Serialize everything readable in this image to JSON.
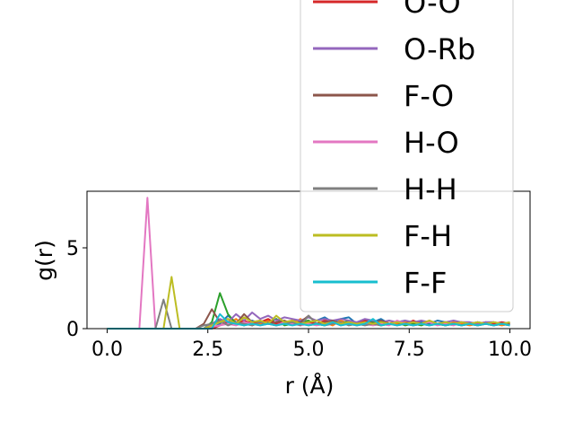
{
  "chart_data": {
    "type": "line",
    "xlabel": "r (Å)",
    "ylabel": "g(r)",
    "x": [
      0,
      0.2,
      0.4,
      0.6,
      0.8,
      1.0,
      1.2,
      1.4,
      1.6,
      1.8,
      2.0,
      2.2,
      2.4,
      2.6,
      2.8,
      3.0,
      3.2,
      3.4,
      3.6,
      3.8,
      4.0,
      4.2,
      4.4,
      4.6,
      4.8,
      5.0,
      5.2,
      5.4,
      5.6,
      5.8,
      6.0,
      6.2,
      6.4,
      6.6,
      6.8,
      7.0,
      7.2,
      7.4,
      7.6,
      7.8,
      8.0,
      8.2,
      8.4,
      8.6,
      8.8,
      9.0,
      9.2,
      9.4,
      9.6,
      9.8,
      10.0
    ],
    "xlim": [
      -0.5,
      10.5
    ],
    "xticks": [
      {
        "value": 0,
        "label": "0.0"
      },
      2.5,
      {
        "value": 5,
        "label": "5.0"
      },
      7.5,
      {
        "value": 10,
        "label": "10.0"
      }
    ],
    "ylim": [
      0,
      8.5
    ],
    "yticks": [
      0,
      5
    ],
    "legend": "upper-right",
    "series": [
      {
        "color": "#1f77b4",
        "values": [
          0,
          0,
          0,
          0,
          0,
          0,
          0,
          0,
          0,
          0,
          0,
          0,
          0,
          0,
          0.3,
          0.8,
          0.4,
          0.2,
          0.5,
          0.3,
          0.4,
          0.6,
          0.3,
          0.5,
          0.4,
          0.3,
          0.5,
          0.7,
          0.4,
          0.6,
          0.7,
          0.3,
          0.5,
          0.4,
          0.6,
          0.3,
          0.4,
          0.5,
          0.3,
          0.4,
          0.3,
          0.5,
          0.4,
          0.3,
          0.4,
          0.3,
          0.4,
          0.3,
          0.3,
          0.4,
          0.3
        ]
      },
      {
        "color": "#ff7f0e",
        "values": [
          0,
          0,
          0,
          0,
          0,
          0,
          0,
          0,
          0,
          0,
          0,
          0,
          0,
          0.2,
          0.5,
          0.3,
          0.6,
          0.2,
          0.4,
          0.3,
          0.5,
          0.2,
          0.4,
          0.3,
          0.6,
          0.2,
          0.3,
          0.4,
          0.2,
          0.5,
          0.3,
          0.2,
          0.4,
          0.3,
          0.2,
          0.5,
          0.3,
          0.4,
          0.2,
          0.3,
          0.4,
          0.3,
          0.2,
          0.4,
          0.3,
          0.2,
          0.3,
          0.4,
          0.3,
          0.2,
          0.3
        ]
      },
      {
        "color": "#2ca02c",
        "values": [
          0,
          0,
          0,
          0,
          0,
          0,
          0,
          0,
          0,
          0,
          0,
          0,
          0,
          0.4,
          2.2,
          0.9,
          0.3,
          0.5,
          0.2,
          0.4,
          0.3,
          0.6,
          0.2,
          0.3,
          0.4,
          0.5,
          0.3,
          0.2,
          0.4,
          0.3,
          0.5,
          0.2,
          0.3,
          0.4,
          0.2,
          0.3,
          0.4,
          0.2,
          0.3,
          0.2,
          0.4,
          0.3,
          0.2,
          0.3,
          0.2,
          0.3,
          0.2,
          0.3,
          0.2,
          0.3,
          0.2
        ]
      },
      {
        "name": "O-O",
        "color": "#d62728",
        "values": [
          0,
          0,
          0,
          0,
          0,
          0,
          0,
          0,
          0,
          0,
          0,
          0,
          0,
          0,
          0.2,
          0.4,
          0.3,
          0.5,
          0.3,
          0.4,
          0.6,
          0.3,
          0.4,
          0.5,
          0.3,
          0.4,
          0.3,
          0.5,
          0.4,
          0.3,
          0.4,
          0.3,
          0.5,
          0.3,
          0.4,
          0.3,
          0.4,
          0.3,
          0.5,
          0.3,
          0.4,
          0.3,
          0.4,
          0.3,
          0.4,
          0.3,
          0.3,
          0.4,
          0.3,
          0.4,
          0.3
        ]
      },
      {
        "name": "O-Rb",
        "color": "#9467bd",
        "values": [
          0,
          0,
          0,
          0,
          0,
          0,
          0,
          0,
          0,
          0,
          0,
          0,
          0,
          0.3,
          0.6,
          0.4,
          0.9,
          0.5,
          1.0,
          0.6,
          0.8,
          0.5,
          0.7,
          0.6,
          0.5,
          0.7,
          0.5,
          0.6,
          0.5,
          0.6,
          0.5,
          0.4,
          0.6,
          0.5,
          0.4,
          0.5,
          0.4,
          0.5,
          0.4,
          0.5,
          0.4,
          0.3,
          0.4,
          0.5,
          0.4,
          0.4,
          0.3,
          0.4,
          0.4,
          0.3,
          0.4
        ]
      },
      {
        "name": "F-O",
        "color": "#8c564b",
        "values": [
          0,
          0,
          0,
          0,
          0,
          0,
          0,
          0,
          0,
          0,
          0,
          0,
          0.3,
          1.2,
          0.4,
          0.6,
          0.3,
          0.9,
          0.4,
          0.5,
          0.3,
          0.4,
          0.5,
          0.3,
          0.4,
          0.8,
          0.3,
          0.4,
          0.5,
          0.3,
          0.4,
          0.3,
          0.4,
          0.3,
          0.5,
          0.3,
          0.4,
          0.3,
          0.4,
          0.3,
          0.5,
          0.3,
          0.4,
          0.3,
          0.4,
          0.3,
          0.4,
          0.3,
          0.4,
          0.3,
          0.3
        ]
      },
      {
        "name": "H-O",
        "color": "#e377c2",
        "values": [
          0,
          0,
          0,
          0,
          0,
          8.1,
          0,
          0,
          0,
          0,
          0,
          0,
          0,
          0.1,
          0.2,
          0.3,
          0.2,
          0.4,
          0.3,
          0.2,
          0.3,
          0.2,
          0.4,
          0.3,
          0.2,
          0.3,
          0.2,
          0.3,
          0.4,
          0.2,
          0.3,
          0.2,
          0.3,
          0.2,
          0.3,
          0.2,
          0.5,
          0.3,
          0.2,
          0.3,
          0.4,
          0.2,
          0.3,
          0.2,
          0.4,
          0.3,
          0.2,
          0.3,
          0.2,
          0.3,
          0.2
        ]
      },
      {
        "name": "H-H",
        "color": "#7f7f7f",
        "values": [
          0,
          0,
          0,
          0,
          0,
          0,
          0,
          1.8,
          0,
          0,
          0,
          0,
          0.2,
          0.3,
          0.5,
          0.2,
          0.4,
          0.3,
          0.2,
          0.4,
          0.3,
          0.2,
          0.3,
          0.4,
          0.2,
          0.8,
          0.3,
          0.2,
          0.3,
          0.4,
          0.2,
          0.3,
          0.2,
          0.3,
          0.2,
          0.3,
          0.2,
          0.3,
          0.2,
          0.3,
          0.2,
          0.3,
          0.2,
          0.3,
          0.2,
          0.3,
          0.2,
          0.3,
          0.2,
          0.3,
          0.2
        ]
      },
      {
        "name": "F-H",
        "color": "#bcbd22",
        "values": [
          0,
          0,
          0,
          0,
          0,
          0,
          0,
          0,
          3.2,
          0,
          0,
          0,
          0,
          0.2,
          0.4,
          0.6,
          0.3,
          0.7,
          0.4,
          0.5,
          0.3,
          0.8,
          0.4,
          0.5,
          0.3,
          0.4,
          0.5,
          0.3,
          0.4,
          0.3,
          0.4,
          0.3,
          0.4,
          0.3,
          0.4,
          0.3,
          0.4,
          0.3,
          0.4,
          0.3,
          0.5,
          0.3,
          0.4,
          0.3,
          0.4,
          0.3,
          0.4,
          0.3,
          0.4,
          0.3,
          0.4
        ]
      },
      {
        "name": "F-F",
        "color": "#17becf",
        "values": [
          0,
          0,
          0,
          0,
          0,
          0,
          0,
          0,
          0,
          0,
          0,
          0,
          0,
          0,
          0.9,
          0.4,
          0.3,
          0.2,
          0.3,
          0.2,
          0.3,
          0.2,
          0.3,
          0.2,
          0.3,
          0.2,
          0.3,
          0.2,
          0.4,
          0.2,
          0.3,
          0.2,
          0.3,
          0.6,
          0.2,
          0.3,
          0.2,
          0.3,
          0.2,
          0.3,
          0.2,
          0.3,
          0.2,
          0.3,
          0.2,
          0.3,
          0.2,
          0.3,
          0.2,
          0.3,
          0.2
        ]
      }
    ]
  }
}
